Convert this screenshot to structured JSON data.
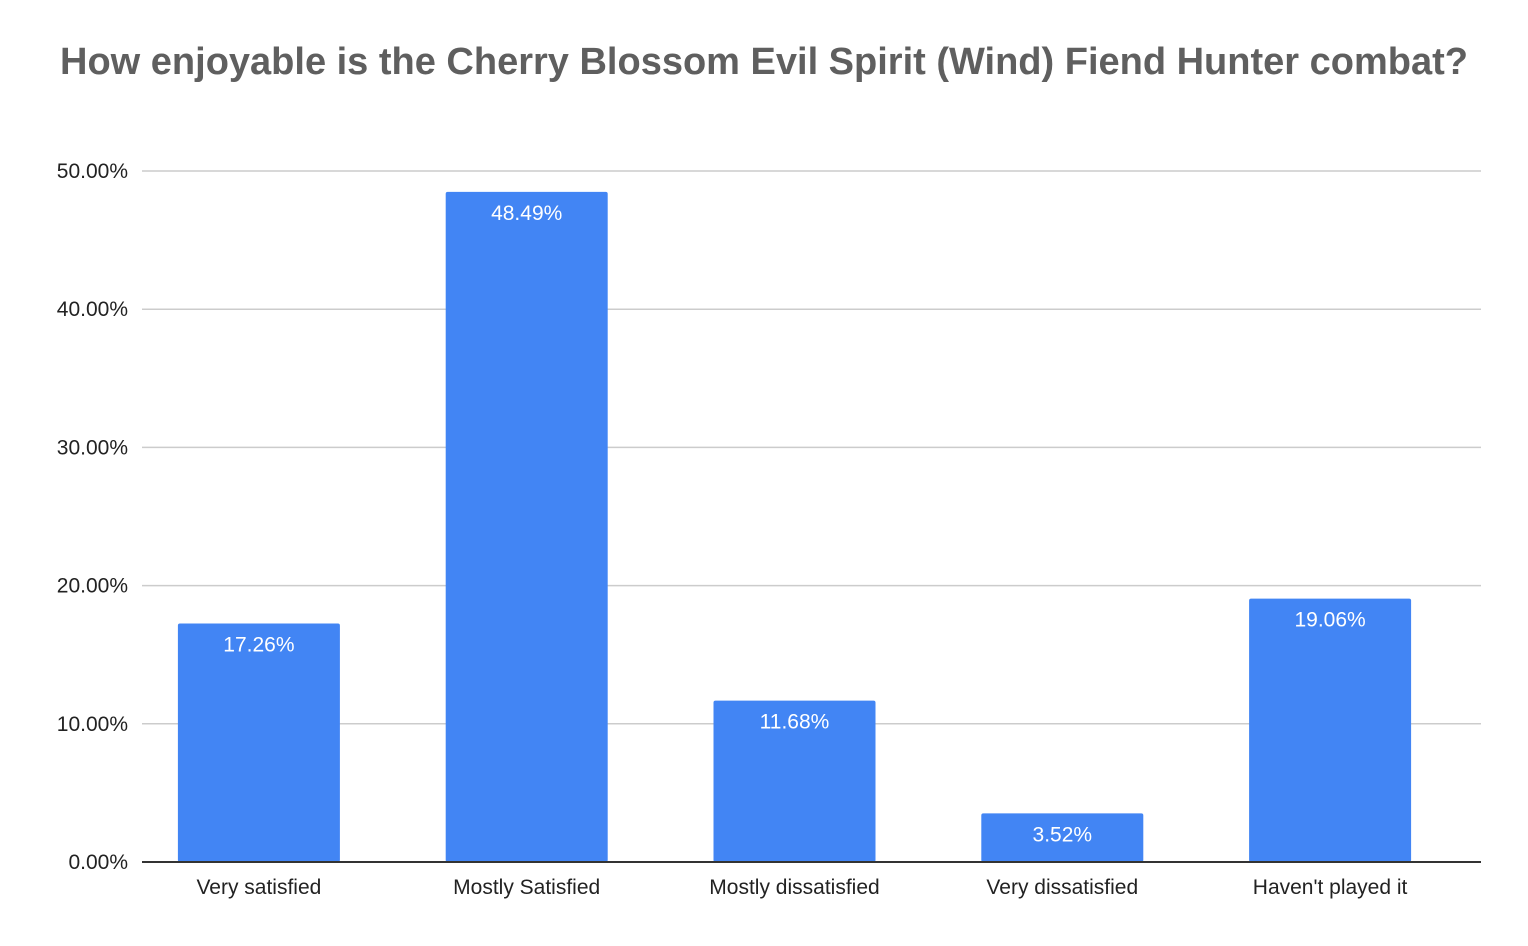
{
  "chart_data": {
    "type": "bar",
    "title": "How enjoyable is the Cherry Blossom Evil Spirit (Wind) Fiend Hunter combat?",
    "xlabel": "",
    "ylabel": "",
    "categories": [
      "Very satisfied",
      "Mostly Satisfied",
      "Mostly dissatisfied",
      "Very dissatisfied",
      "Haven't played it"
    ],
    "values": [
      17.26,
      48.49,
      11.68,
      3.52,
      19.06
    ],
    "value_labels": [
      "17.26%",
      "48.49%",
      "11.68%",
      "3.52%",
      "19.06%"
    ],
    "ylim": [
      0,
      50
    ],
    "y_ticks": [
      0,
      10,
      20,
      30,
      40,
      50
    ],
    "y_tick_labels": [
      "0.00%",
      "10.00%",
      "20.00%",
      "30.00%",
      "40.00%",
      "50.00%"
    ],
    "grid": true,
    "legend": "none",
    "colors": {
      "bar": "#4285f4",
      "grid": "#cccccc",
      "axis": "#333333",
      "title": "#5f5f5f"
    }
  }
}
